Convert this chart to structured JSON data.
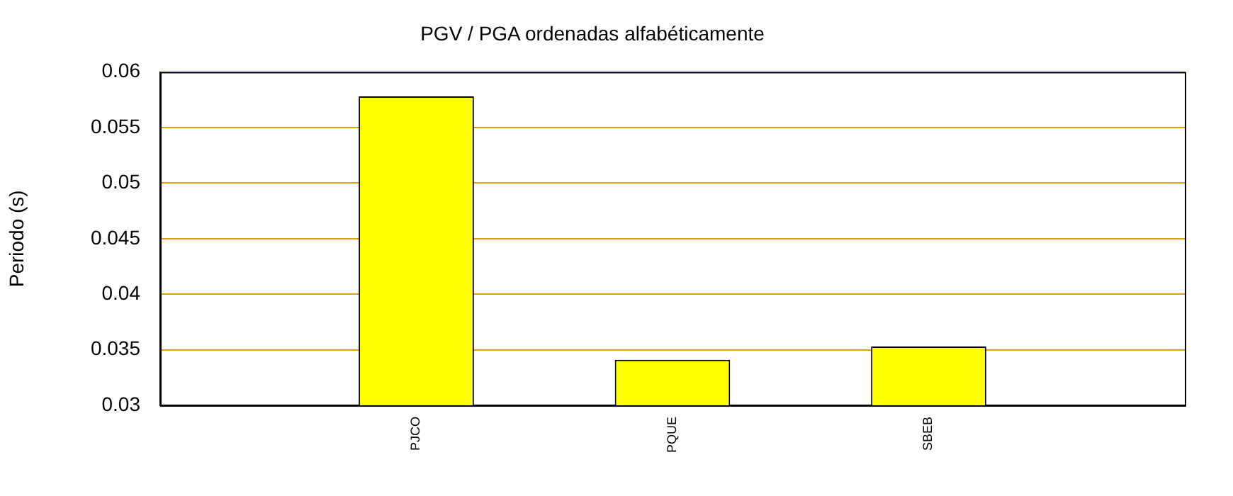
{
  "chart_data": {
    "type": "bar",
    "title": "PGV / PGA ordenadas alfabéticamente",
    "ylabel": "Periodo (s)",
    "categories": [
      null,
      "PJCO",
      "PQUE",
      "SBEB",
      null
    ],
    "values": [
      null,
      0.0578,
      0.0341,
      0.0353,
      null
    ],
    "color": "#ffff00",
    "ylim": [
      0.03,
      0.06
    ],
    "yticks": [
      0.03,
      0.035,
      0.04,
      0.045,
      0.05,
      0.055,
      0.06
    ],
    "grid": "y",
    "legend": false
  }
}
